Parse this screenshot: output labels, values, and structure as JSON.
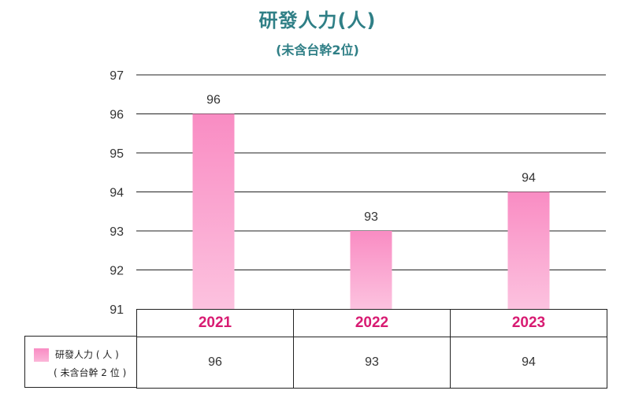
{
  "chart_data": {
    "type": "bar",
    "title": "研發人力(人)",
    "subtitle": "(未含台幹2位)",
    "categories": [
      "2021",
      "2022",
      "2023"
    ],
    "series": [
      {
        "name": "研發人力(人)",
        "values": [
          96,
          93,
          94
        ]
      }
    ],
    "ylim": [
      91,
      97
    ],
    "yticks": [
      "97",
      "96",
      "95",
      "94",
      "93",
      "92",
      "91"
    ],
    "grid": true,
    "bar_color": "#f98cc3",
    "legend_line1": "研發人力 ( 人 )",
    "legend_line2": "( 未含台幹 2 位 )",
    "table_values": [
      "96",
      "93",
      "94"
    ]
  }
}
